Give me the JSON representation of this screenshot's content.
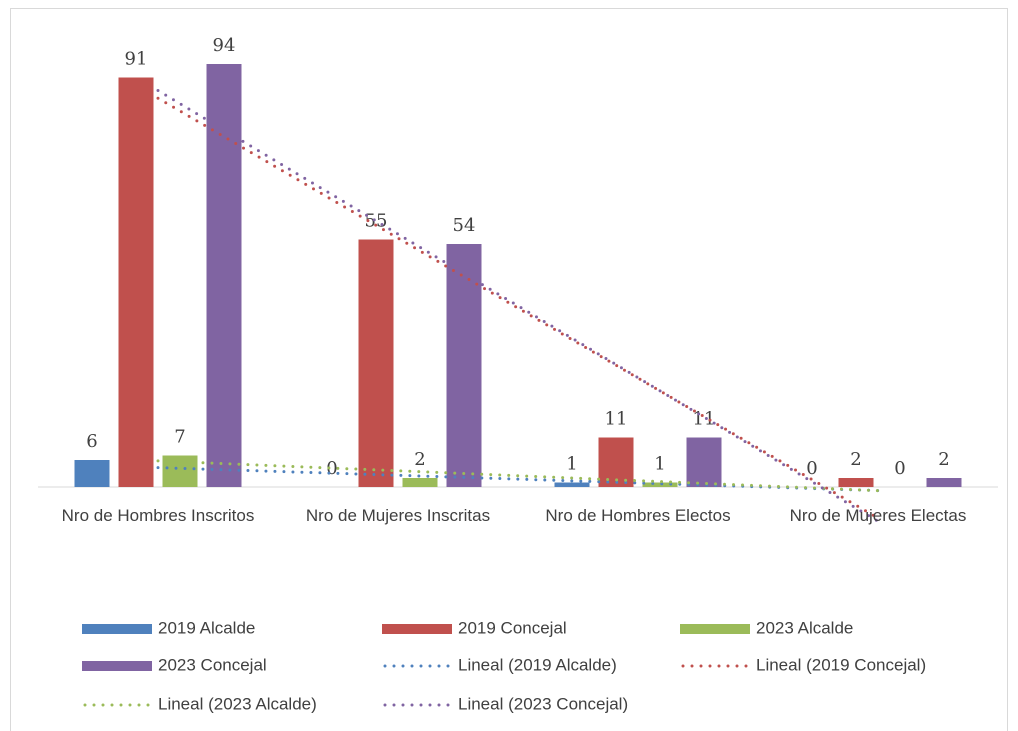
{
  "chart_data": {
    "type": "bar",
    "categories": [
      "Nro de Hombres Inscritos",
      "Nro de Mujeres Inscritas",
      "Nro de Hombres Electos",
      "Nro de Mujeres Electas"
    ],
    "series": [
      {
        "name": "2019 Alcalde",
        "color": "#4f81bd",
        "values": [
          6,
          0,
          1,
          0
        ]
      },
      {
        "name": "2019 Concejal",
        "color": "#c0504d",
        "values": [
          91,
          55,
          11,
          2
        ]
      },
      {
        "name": "2023 Alcalde",
        "color": "#9bbb59",
        "values": [
          7,
          2,
          1,
          0
        ]
      },
      {
        "name": "2023 Concejal",
        "color": "#8064a2",
        "values": [
          94,
          54,
          11,
          2
        ]
      }
    ],
    "trendlines": [
      {
        "name": "Lineal (2019 Alcalde)",
        "series": 0
      },
      {
        "name": "Lineal (2019 Concejal)",
        "series": 1
      },
      {
        "name": "Lineal (2023 Alcalde)",
        "series": 2
      },
      {
        "name": "Lineal (2023 Concejal)",
        "series": 3
      }
    ]
  }
}
